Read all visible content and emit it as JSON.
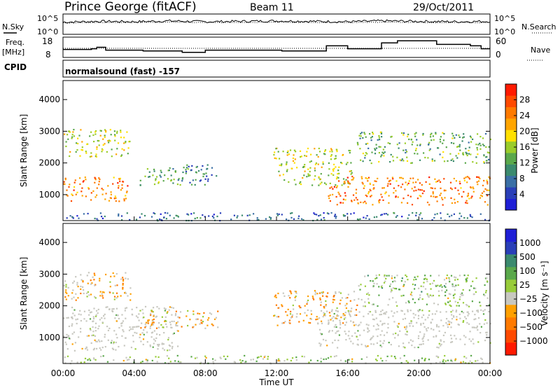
{
  "header": {
    "station": "Prince George (fitACF)",
    "beam": "Beam 11",
    "date": "29/Oct/2011"
  },
  "left_labels": {
    "nsky": "N.Sky",
    "freq": "Freq.",
    "freq_unit": "[MHz]",
    "cpid": "CPID"
  },
  "right_labels": {
    "nsearch": "N.Search",
    "nave": "Nave"
  },
  "cpid_text": "normalsound (fast) -157",
  "colors": {
    "power_scale": [
      "#1f1fd6",
      "#2a3fb8",
      "#3a6fa5",
      "#3b8a6e",
      "#5aa84b",
      "#9acc2a",
      "#ffe000",
      "#ffa500",
      "#ff7a00",
      "#ff4a00",
      "#ff1a00"
    ],
    "velocity_scale": [
      "#1f1fd6",
      "#2a3fb8",
      "#3b8a6e",
      "#5aa84b",
      "#98cc3a",
      "#c8c8c0",
      "#ffa000",
      "#ff7a00",
      "#ff4a00",
      "#ff1a00"
    ],
    "ground_scatter": "#c8c8c0"
  },
  "chart_data": [
    {
      "type": "line",
      "panel": "noise",
      "ytick_labels": [
        "10^5",
        "10^0"
      ],
      "right_ytick_labels": [
        "10^5",
        "10^0"
      ],
      "series": [
        {
          "name": "N.Sky",
          "values_per_2h": [
            3,
            3.2,
            3.1,
            3.3,
            3.1,
            3.2,
            3.3,
            3.2,
            3.1,
            3.3,
            3.2,
            3.1,
            3.2
          ]
        },
        {
          "name": "N.Search",
          "values_per_2h": [
            2.8,
            2.9,
            2.9,
            3.0,
            2.9,
            2.9,
            3.0,
            2.9,
            2.9,
            3.0,
            2.9,
            2.9,
            2.9
          ]
        }
      ]
    },
    {
      "type": "line",
      "panel": "frequency",
      "ytick_labels": [
        "18",
        "8"
      ],
      "right_ytick_labels": [
        "60",
        "0"
      ],
      "series": [
        {
          "name": "Freq.",
          "points": [
            [
              0.0,
              11.5
            ],
            [
              1.6,
              11.5
            ],
            [
              1.6,
              12
            ],
            [
              1.9,
              12
            ],
            [
              1.9,
              13
            ],
            [
              2.4,
              13
            ],
            [
              2.4,
              11
            ],
            [
              4.5,
              11
            ],
            [
              4.5,
              10.5
            ],
            [
              6.7,
              10.5
            ],
            [
              6.7,
              9.5
            ],
            [
              8.0,
              9.5
            ],
            [
              8.0,
              11
            ],
            [
              12.3,
              11
            ],
            [
              12.3,
              10.5
            ],
            [
              14.8,
              10.5
            ],
            [
              14.8,
              14
            ],
            [
              16.0,
              14
            ],
            [
              16.0,
              12
            ],
            [
              17.9,
              12
            ],
            [
              17.9,
              16
            ],
            [
              18.8,
              16
            ],
            [
              18.8,
              17.5
            ],
            [
              21.0,
              17.5
            ],
            [
              21.0,
              15
            ],
            [
              22.9,
              15
            ],
            [
              22.9,
              14
            ],
            [
              23.5,
              14
            ],
            [
              23.5,
              12
            ],
            [
              24.0,
              12
            ]
          ]
        },
        {
          "name": "Nave",
          "values": [
            25,
            25
          ]
        }
      ]
    },
    {
      "type": "heatmap",
      "panel": "power",
      "xlabel": "",
      "ylabel": "Slant Range [km]",
      "ylim": [
        180,
        4600
      ],
      "ytick_labels": [
        "1000",
        "2000",
        "3000",
        "4000"
      ],
      "colorbar_label": "Power [dB]",
      "colorbar_ticks": [
        "4",
        "8",
        "12",
        "16",
        "20",
        "24",
        "28"
      ],
      "clim": [
        0,
        30
      ],
      "regions": [
        {
          "t0": 0.0,
          "t1": 3.6,
          "r0": 800,
          "r1": 1600,
          "value": 24
        },
        {
          "t0": 0.0,
          "t1": 3.8,
          "r0": 2200,
          "r1": 3100,
          "value": 16
        },
        {
          "t0": 4.3,
          "t1": 7.0,
          "r0": 1300,
          "r1": 1900,
          "value": 12
        },
        {
          "t0": 6.8,
          "t1": 8.7,
          "r0": 1300,
          "r1": 2000,
          "value": 8
        },
        {
          "t0": 11.8,
          "t1": 16.2,
          "r0": 1300,
          "r1": 2500,
          "value": 16
        },
        {
          "t0": 14.8,
          "t1": 24.0,
          "r0": 700,
          "r1": 1600,
          "value": 24
        },
        {
          "t0": 16.5,
          "t1": 24.0,
          "r0": 2000,
          "r1": 3000,
          "value": 12
        },
        {
          "t0": 0.0,
          "t1": 24.0,
          "r0": 200,
          "r1": 450,
          "value": 6
        }
      ]
    },
    {
      "type": "heatmap",
      "panel": "velocity",
      "xlabel": "Time UT",
      "ylabel": "Slant Range [km]",
      "ylim": [
        180,
        4600
      ],
      "xlim": [
        "00:00",
        "24:00"
      ],
      "xtick_labels": [
        "00:00",
        "04:00",
        "08:00",
        "12:00",
        "16:00",
        "20:00",
        "00:00"
      ],
      "ytick_labels": [
        "1000",
        "2000",
        "3000",
        "4000"
      ],
      "colorbar_label": "Velocity [m s⁻¹]",
      "colorbar_ticks": [
        "1000",
        "500",
        "100",
        "25",
        "−25",
        "−100",
        "−500",
        "−1000"
      ],
      "regions": [
        {
          "t0": 0.0,
          "t1": 3.8,
          "r0": 2200,
          "r1": 3100,
          "value": -150
        },
        {
          "t0": 0.0,
          "t1": 6.5,
          "r0": 600,
          "r1": 2000,
          "value": 0
        },
        {
          "t0": 4.3,
          "t1": 8.7,
          "r0": 1300,
          "r1": 1900,
          "value": -150
        },
        {
          "t0": 11.8,
          "t1": 16.5,
          "r0": 1400,
          "r1": 2500,
          "value": -150
        },
        {
          "t0": 14.3,
          "t1": 24.0,
          "r0": 700,
          "r1": 1900,
          "value": 0
        },
        {
          "t0": 16.5,
          "t1": 24.0,
          "r0": 2000,
          "r1": 3000,
          "value": 60
        },
        {
          "t0": 0.0,
          "t1": 24.0,
          "r0": 200,
          "r1": 450,
          "value": 40
        }
      ]
    }
  ]
}
